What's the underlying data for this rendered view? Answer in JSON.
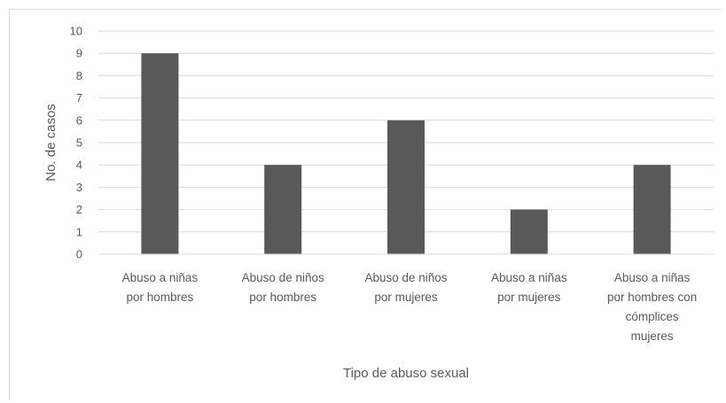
{
  "chart_data": {
    "type": "bar",
    "title": "",
    "xlabel": "Tipo de abuso sexual",
    "ylabel": "No. de casos",
    "ylim": [
      0,
      10
    ],
    "yticks": [
      "0",
      "1",
      "2",
      "3",
      "4",
      "5",
      "6",
      "7",
      "8",
      "9",
      "10"
    ],
    "categories": [
      [
        "Abuso a niñas",
        "por hombres"
      ],
      [
        "Abuso de niños",
        "por hombres"
      ],
      [
        "Abuso de niños",
        "por mujeres"
      ],
      [
        "Abuso a niñas",
        "por mujeres"
      ],
      [
        "Abuso a niñas",
        "por hombres con",
        "cómplices",
        "mujeres"
      ]
    ],
    "values": [
      9,
      4,
      6,
      2,
      4
    ],
    "grid": true,
    "bar_color": "#595959",
    "grid_color": "#d9d9d9"
  }
}
